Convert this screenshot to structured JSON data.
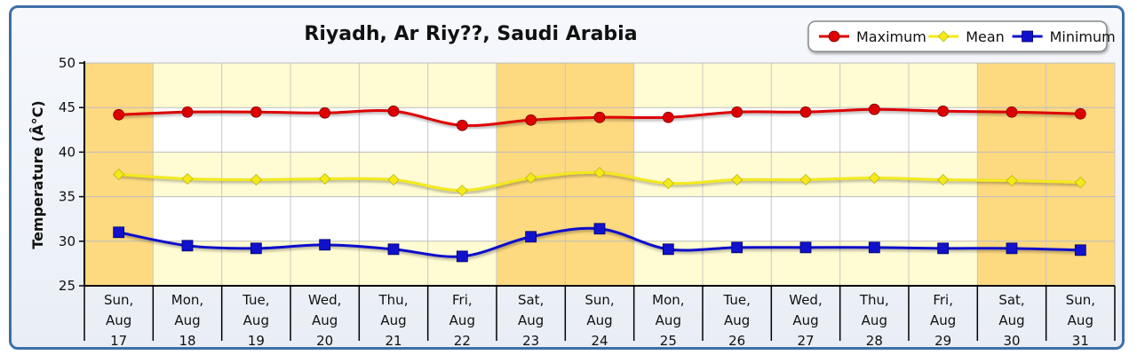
{
  "chart_data": {
    "type": "line",
    "title": "Riyadh, Ar Riy??, Saudi Arabia",
    "ylabel": "Temperature (Â°C)",
    "xlabel": "",
    "ylim": [
      25,
      50
    ],
    "yticks": [
      25,
      30,
      35,
      40,
      45,
      50
    ],
    "categories": [
      [
        "Sun,",
        "Aug",
        "17"
      ],
      [
        "Mon,",
        "Aug",
        "18"
      ],
      [
        "Tue,",
        "Aug",
        "19"
      ],
      [
        "Wed,",
        "Aug",
        "20"
      ],
      [
        "Thu,",
        "Aug",
        "21"
      ],
      [
        "Fri,",
        "Aug",
        "22"
      ],
      [
        "Sat,",
        "Aug",
        "23"
      ],
      [
        "Sun,",
        "Aug",
        "24"
      ],
      [
        "Mon,",
        "Aug",
        "25"
      ],
      [
        "Tue,",
        "Aug",
        "26"
      ],
      [
        "Wed,",
        "Aug",
        "27"
      ],
      [
        "Thu,",
        "Aug",
        "28"
      ],
      [
        "Fri,",
        "Aug",
        "29"
      ],
      [
        "Sat,",
        "Aug",
        "30"
      ],
      [
        "Sun,",
        "Aug",
        "31"
      ]
    ],
    "weekend_indices": [
      0,
      6,
      7,
      13,
      14
    ],
    "grid": true,
    "legend_position": "top-right",
    "series": [
      {
        "name": "Maximum",
        "color": "#dd0000",
        "marker": "circle",
        "values": [
          44.2,
          44.5,
          44.5,
          44.4,
          44.6,
          43.0,
          43.6,
          43.9,
          43.9,
          44.5,
          44.5,
          44.8,
          44.6,
          44.5,
          44.3
        ]
      },
      {
        "name": "Mean",
        "color": "#f2ea1a",
        "marker": "diamond",
        "values": [
          37.5,
          37.0,
          36.9,
          37.0,
          36.9,
          35.7,
          37.1,
          37.7,
          36.5,
          36.9,
          36.9,
          37.1,
          36.9,
          36.8,
          36.6
        ]
      },
      {
        "name": "Minimum",
        "color": "#1111cc",
        "marker": "square",
        "values": [
          31.0,
          29.5,
          29.2,
          29.6,
          29.1,
          28.3,
          30.5,
          31.4,
          29.1,
          29.3,
          29.3,
          29.3,
          29.2,
          29.2,
          29.0
        ]
      }
    ]
  }
}
